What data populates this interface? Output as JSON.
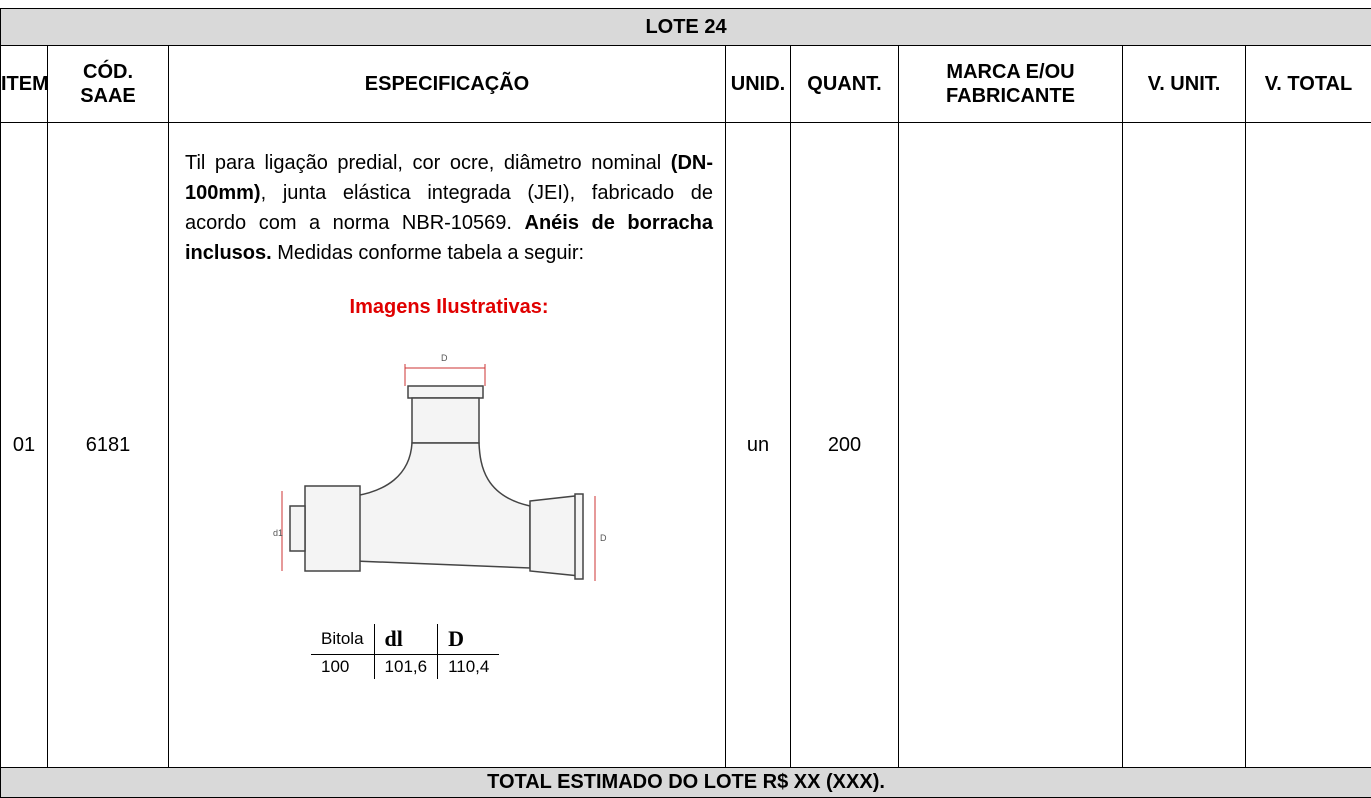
{
  "title": "LOTE 24",
  "headers": [
    "ITEM",
    "CÓD.\nSAAE",
    "ESPECIFICAÇÃO",
    "UNID.",
    "QUANT.",
    "MARCA E/OU\nFABRICANTE",
    "V. UNIT.",
    "V. TOTAL"
  ],
  "rows": [
    {
      "item": "01",
      "code": "6181",
      "specification": {
        "runs": [
          {
            "text": "Til para ligação predial, cor ocre, diâmetro nominal ",
            "bold": false
          },
          {
            "text": "(DN-100mm)",
            "bold": true
          },
          {
            "text": ", junta elástica integrada (JEI), fabricado de acordo com a norma NBR-10569. ",
            "bold": false
          },
          {
            "text": "Anéis de borracha inclusos.",
            "bold": true
          },
          {
            "text": " Medidas conforme tabela a seguir:",
            "bold": false
          }
        ]
      },
      "illustration_caption": "Imagens Ilustrativas:",
      "drawing_labels": [
        "D",
        "d1",
        "D"
      ],
      "dimensions": {
        "header": [
          "Bitola",
          "dl",
          "D"
        ],
        "rows": [
          [
            "100",
            "101,6",
            "110,4"
          ]
        ]
      },
      "unit": "un",
      "quantity": "200"
    }
  ],
  "footer": "TOTAL ESTIMADO DO LOTE R$ XX (XXX)."
}
